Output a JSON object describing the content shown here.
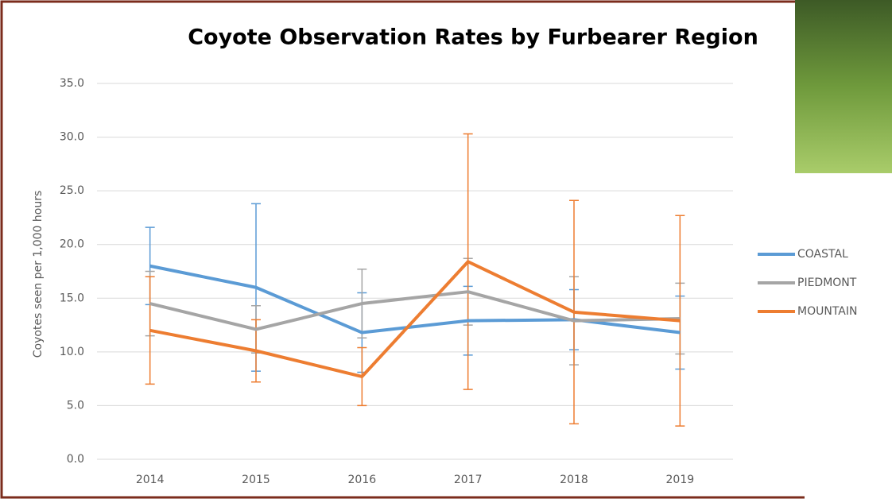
{
  "chart_data": {
    "type": "line",
    "title": "Coyote Observation Rates by Furbearer Region",
    "y_label": "Coyotes seen per 1,000 hours",
    "categories": [
      "2014",
      "2015",
      "2016",
      "2017",
      "2018",
      "2019"
    ],
    "series": [
      {
        "name": "COASTAL",
        "color": "#5b9bd5",
        "values": [
          18.0,
          16.0,
          11.8,
          12.9,
          13.0,
          11.8
        ],
        "errors": [
          3.6,
          7.8,
          3.7,
          3.2,
          2.8,
          3.4
        ]
      },
      {
        "name": "PIEDMONT",
        "color": "#a5a5a5",
        "values": [
          14.5,
          12.1,
          14.5,
          15.6,
          12.9,
          13.1
        ],
        "errors": [
          3.0,
          2.2,
          3.2,
          3.1,
          4.1,
          3.3
        ]
      },
      {
        "name": "MOUNTAIN",
        "color": "#ed7d31",
        "values": [
          12.0,
          10.1,
          7.7,
          18.4,
          13.7,
          12.9
        ],
        "errors": [
          5.0,
          2.9,
          2.7,
          11.9,
          10.4,
          9.8
        ]
      }
    ],
    "ylim": [
      0,
      35
    ],
    "yticks": [
      {
        "value": 0,
        "label": "0.0"
      },
      {
        "value": 5,
        "label": "5.0"
      },
      {
        "value": 10,
        "label": "10.0"
      },
      {
        "value": 15,
        "label": "15.0"
      },
      {
        "value": 20,
        "label": "20.0"
      },
      {
        "value": 25,
        "label": "25.0"
      },
      {
        "value": 30,
        "label": "30.0"
      },
      {
        "value": 35,
        "label": "35.0"
      }
    ],
    "grid": true,
    "legend": "right"
  }
}
